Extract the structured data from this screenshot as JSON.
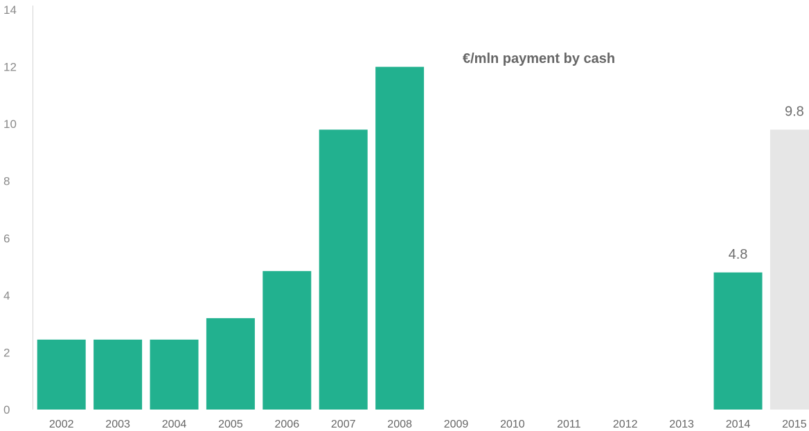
{
  "chart_data": {
    "type": "bar",
    "title": "€/mln payment by cash",
    "xlabel": "",
    "ylabel": "",
    "ylim": [
      0,
      14
    ],
    "yticks": [
      0,
      2,
      4,
      6,
      8,
      10,
      12,
      14
    ],
    "categories": [
      "2002",
      "2003",
      "2004",
      "2005",
      "2006",
      "2007",
      "2008",
      "2009",
      "2010",
      "2011",
      "2012",
      "2013",
      "2014",
      "2015"
    ],
    "values": [
      2.45,
      2.45,
      2.45,
      3.2,
      4.85,
      9.8,
      12.0,
      null,
      null,
      null,
      null,
      null,
      4.8,
      9.8
    ],
    "data_labels": [
      "",
      "",
      "",
      "",
      "",
      "",
      "",
      "",
      "",
      "",
      "",
      "",
      "4.8",
      "9.8"
    ],
    "colors": [
      "#22b18f",
      "#22b18f",
      "#22b18f",
      "#22b18f",
      "#22b18f",
      "#22b18f",
      "#22b18f",
      "#22b18f",
      "#22b18f",
      "#22b18f",
      "#22b18f",
      "#22b18f",
      "#22b18f",
      "#e6e6e6"
    ],
    "grid": false,
    "legend": "none"
  }
}
